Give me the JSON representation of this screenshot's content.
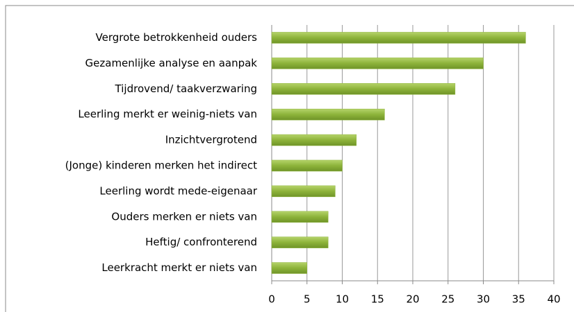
{
  "chart_data": {
    "type": "bar",
    "orientation": "horizontal",
    "categories": [
      "Vergrote betrokkenheid ouders",
      "Gezamenlijke analyse en aanpak",
      "Tijdrovend/ taakverzwaring",
      "Leerling merkt er weinig-niets van",
      "Inzichtvergrotend",
      "(Jonge) kinderen merken het indirect",
      "Leerling wordt mede-eigenaar",
      "Ouders merken er niets van",
      "Heftig/ confronterend",
      "Leerkracht merkt er niets van"
    ],
    "values": [
      36,
      30,
      26,
      16,
      12,
      10,
      9,
      8,
      8,
      5
    ],
    "color": "#8db33a",
    "xlim": [
      0,
      40
    ],
    "xticks": [
      0,
      5,
      10,
      15,
      20,
      25,
      30,
      35,
      40
    ],
    "grid": true
  }
}
